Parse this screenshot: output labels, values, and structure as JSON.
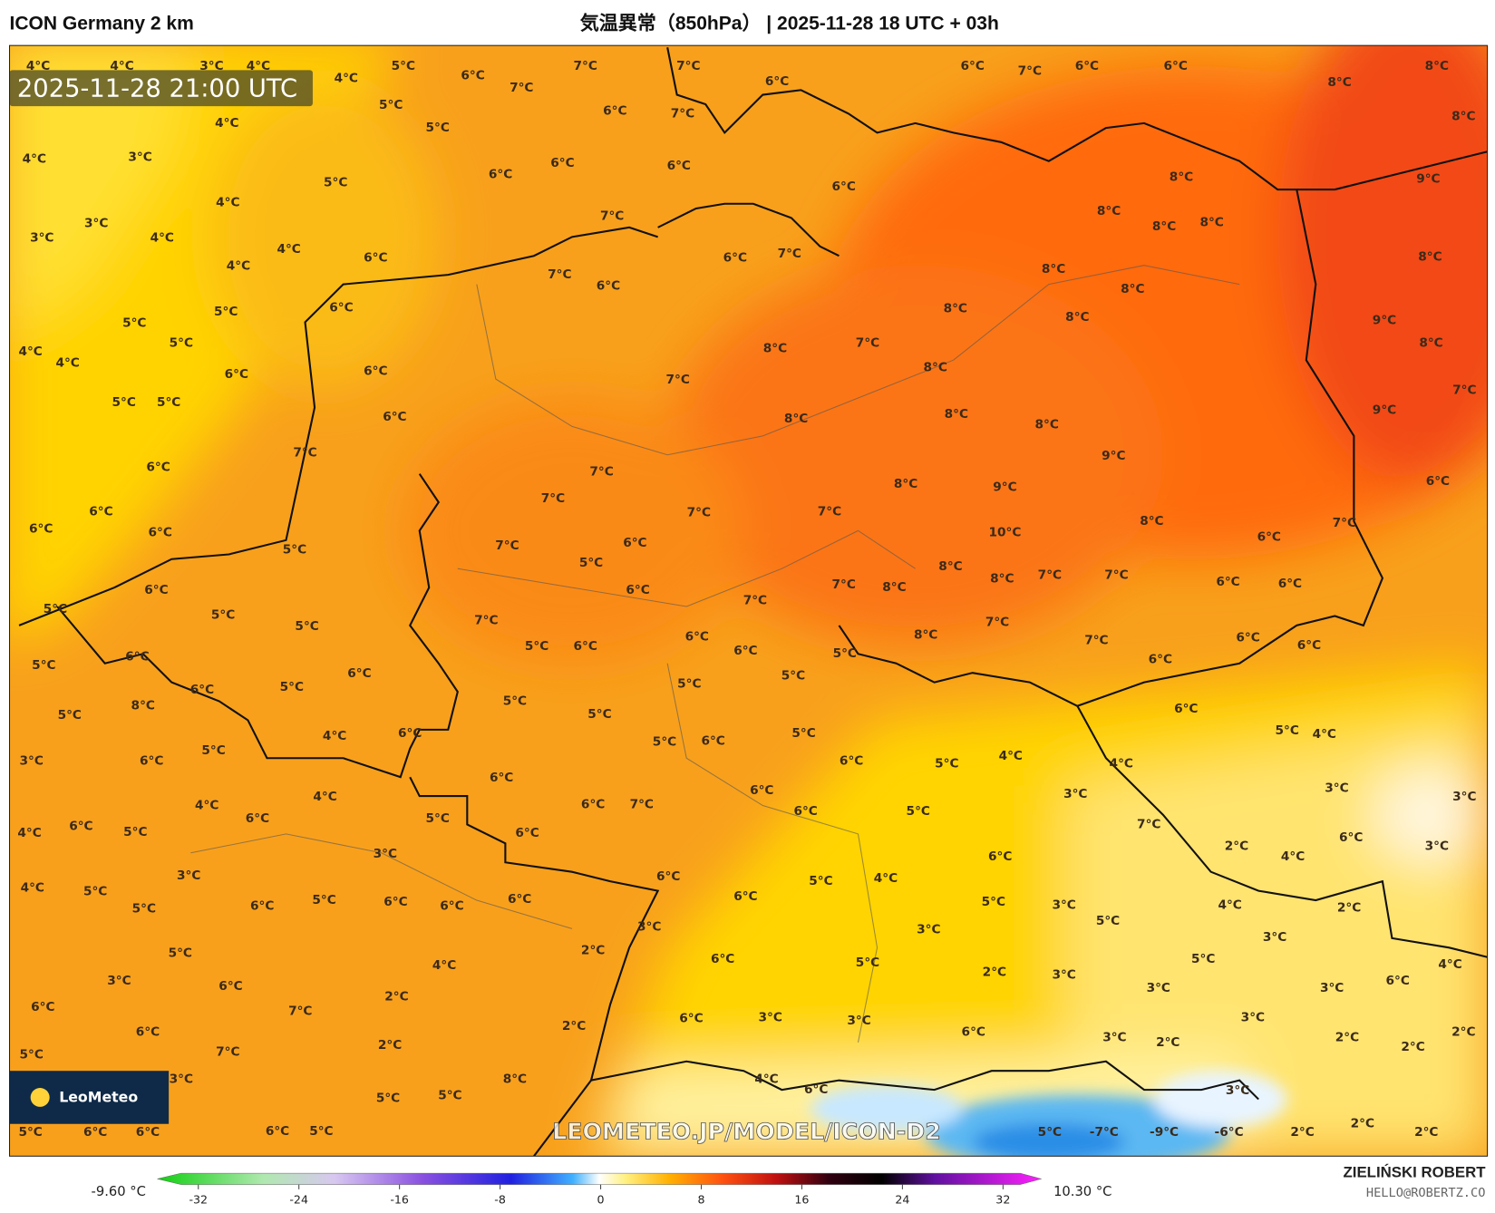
{
  "header": {
    "model": "ICON Germany 2 km",
    "title": "気温異常（850hPa） | 2025-11-28 18 UTC + 03h"
  },
  "map": {
    "timestamp": "2025-11-28 21:00 UTC",
    "watermark": "LEOMETEO.JP/MODEL/ICON-D2",
    "logo": "LeoMeteo",
    "labels": [
      "4°C",
      "4°C",
      "3°C",
      "4°C",
      "5°C",
      "6°C",
      "7°C",
      "7°C",
      "6°C",
      "6°C",
      "7°C",
      "6°C",
      "6°C",
      "8°C",
      "4°C",
      "5°C",
      "7°C",
      "4°C",
      "5°C",
      "6°C",
      "7°C",
      "8°C",
      "8°C",
      "3°C",
      "4°C",
      "5°C",
      "6°C",
      "6°C",
      "6°C",
      "6°C",
      "8°C",
      "9°C",
      "4°C",
      "3°C",
      "4°C",
      "3°C",
      "7°C",
      "8°C",
      "8°C",
      "8°C",
      "4°C",
      "6°C",
      "6°C",
      "7°C",
      "8°C",
      "4°C",
      "7°C",
      "8°C",
      "8°C",
      "5°C",
      "6°C",
      "6°C",
      "8°C",
      "8°C",
      "9°C",
      "5°C",
      "5°C",
      "4°C",
      "4°C",
      "6°C",
      "8°C",
      "7°C",
      "8°C",
      "8°C",
      "6°C",
      "5°C",
      "5°C",
      "6°C",
      "7°C",
      "8°C",
      "8°C",
      "9°C",
      "7°C",
      "7°C",
      "8°C",
      "9°C",
      "6°C",
      "7°C",
      "9°C",
      "8°C",
      "6°C",
      "6°C",
      "7°C",
      "7°C",
      "7°C",
      "10°C",
      "8°C",
      "6°C",
      "6°C",
      "7°C",
      "6°C",
      "6°C",
      "7°C",
      "5°C",
      "5°C",
      "8°C",
      "8°C",
      "7°C",
      "7°C",
      "6°C",
      "6°C",
      "5°C",
      "6°C",
      "6°C",
      "7°C",
      "7°C",
      "8°C",
      "5°C",
      "5°C",
      "7°C",
      "7°C",
      "8°C",
      "7°C",
      "6°C",
      "6°C",
      "5°C",
      "6°C",
      "6°C",
      "6°C",
      "5°C",
      "5°C",
      "6°C",
      "5°C",
      "6°C",
      "6°C",
      "6°C",
      "5°C",
      "5°C",
      "6°C",
      "8°C",
      "5°C",
      "5°C",
      "5°C",
      "6°C",
      "4°C",
      "5°C",
      "5°C",
      "4°C",
      "3°C",
      "6°C",
      "5°C",
      "5°C",
      "6°C",
      "6°C",
      "5°C",
      "4°C",
      "4°C",
      "3°C",
      "3°C",
      "3°C",
      "4°C",
      "6°C",
      "6°C",
      "6°C",
      "5°C",
      "4°C",
      "6°C",
      "6°C",
      "6°C",
      "7°C",
      "7°C",
      "4°C",
      "5°C",
      "5°C",
      "6°C",
      "6°C",
      "2°C",
      "3°C",
      "3°C",
      "6°C",
      "4°C",
      "3°C",
      "6°C",
      "5°C",
      "4°C",
      "4°C",
      "5°C",
      "5°C",
      "6°C",
      "6°C",
      "6°C",
      "6°C",
      "6°C",
      "5°C",
      "5°C",
      "3°C",
      "4°C",
      "2°C",
      "3°C",
      "5°C",
      "3°C",
      "3°C",
      "2°C",
      "5°C",
      "5°C",
      "4°C",
      "6°C",
      "5°C",
      "2°C",
      "3°C",
      "4°C",
      "3°C",
      "6°C",
      "6°C",
      "3°C",
      "3°C",
      "2°C",
      "6°C",
      "7°C",
      "6°C",
      "3°C",
      "3°C",
      "3°C",
      "2°C",
      "6°C",
      "6°C",
      "3°C",
      "2°C",
      "2°C",
      "2°C",
      "2°C",
      "2°C",
      "5°C",
      "7°C",
      "8°C",
      "4°C",
      "3°C",
      "6°C",
      "3°C",
      "5°C",
      "5°C",
      "5°C",
      "6°C",
      "6°C",
      "6°C",
      "5°C",
      "5°C",
      "-7°C",
      "-9°C",
      "-6°C",
      "2°C",
      "2°C",
      "2°C",
      "3°C"
    ]
  },
  "colorbar": {
    "min_label": "-9.60 °C",
    "max_label": "10.30 °C",
    "ticks": [
      -32,
      -24,
      -16,
      -8,
      0,
      8,
      16,
      24,
      32
    ]
  },
  "footer": {
    "author": "ZIELIŃSKI ROBERT",
    "email": "HELLO@ROBERTZ.CO"
  }
}
